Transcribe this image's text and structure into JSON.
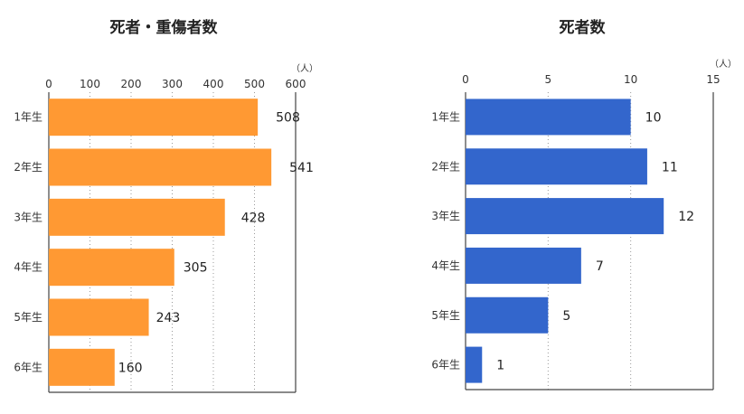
{
  "chart_data": [
    {
      "type": "bar",
      "orientation": "horizontal",
      "title": "死者・重傷者数",
      "unit": "（人）",
      "categories": [
        "1年生",
        "2年生",
        "3年生",
        "4年生",
        "5年生",
        "6年生"
      ],
      "values": [
        508,
        541,
        428,
        305,
        243,
        160
      ],
      "xlim": [
        0,
        600
      ],
      "xticks": [
        0,
        100,
        200,
        300,
        400,
        500,
        600
      ],
      "grid": true,
      "color": "#FF9933"
    },
    {
      "type": "bar",
      "orientation": "horizontal",
      "title": "死者数",
      "unit": "（人）",
      "categories": [
        "1年生",
        "2年生",
        "3年生",
        "4年生",
        "5年生",
        "6年生"
      ],
      "values": [
        10,
        11,
        12,
        7,
        5,
        1
      ],
      "xlim": [
        0,
        15
      ],
      "xticks": [
        0,
        5,
        10,
        15
      ],
      "grid": true,
      "color": "#3366CC"
    }
  ]
}
